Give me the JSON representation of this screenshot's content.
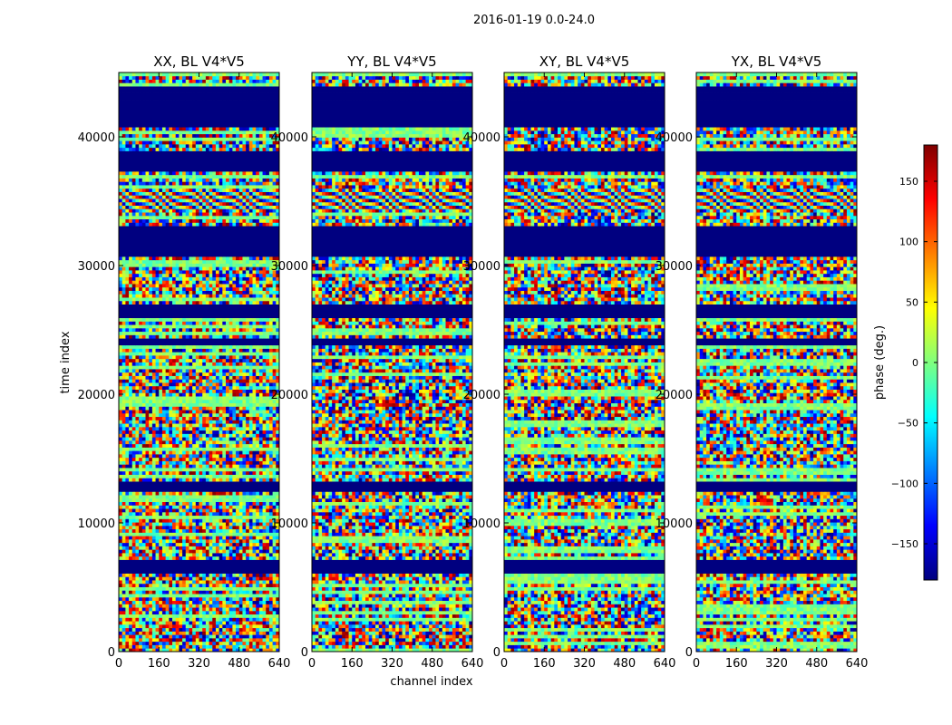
{
  "chart_data": {
    "type": "heatmap",
    "title": "2016-01-19 0.0-24.0",
    "xlabel": "channel index",
    "ylabel": "time index",
    "xlim": [
      0,
      640
    ],
    "ylim": [
      0,
      45000
    ],
    "xticks": [
      "0",
      "160",
      "320",
      "480",
      "640"
    ],
    "yticks": [
      "0",
      "10000",
      "20000",
      "30000",
      "40000"
    ],
    "colorbar": {
      "label": "phase (deg.)",
      "range": [
        -180,
        180
      ],
      "ticks": [
        "−150",
        "−100",
        "−50",
        "0",
        "50",
        "100",
        "150"
      ],
      "tick_values": [
        -150,
        -100,
        -50,
        0,
        50,
        100,
        150
      ],
      "colormap": "jet"
    },
    "panels": [
      {
        "title": "XX, BL V4*V5",
        "pol": "XX"
      },
      {
        "title": "YY, BL V4*V5",
        "pol": "YY"
      },
      {
        "title": "XY, BL V4*V5",
        "pol": "XY"
      },
      {
        "title": "YX, BL V4*V5",
        "pol": "YX"
      }
    ],
    "flagged_time_ranges": [
      [
        40800,
        44000
      ],
      [
        37400,
        39000
      ],
      [
        30800,
        33200
      ],
      [
        26000,
        27000
      ],
      [
        23800,
        24300
      ],
      [
        12400,
        13200
      ],
      [
        6200,
        7200
      ]
    ],
    "fringe_time_ranges": [
      [
        34200,
        36000
      ]
    ],
    "flag_value_deg": -180
  },
  "colors": {
    "jet_low": "#00007f",
    "jet_high": "#7f0000",
    "frame": "#000000"
  }
}
